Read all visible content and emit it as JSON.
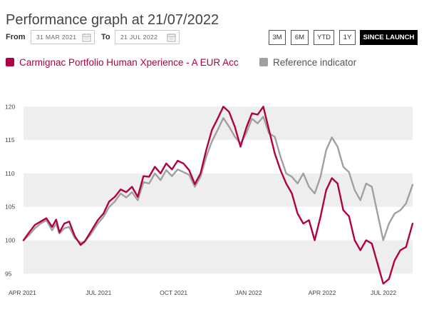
{
  "title": "Performance graph at 21/07/2022",
  "range": {
    "from_label": "From",
    "from_value": "31 MAR 2021",
    "to_label": "To",
    "to_value": "21 JUL 2022",
    "icon": "calendar-icon"
  },
  "periods": [
    {
      "label": "3M",
      "active": false
    },
    {
      "label": "6M",
      "active": false
    },
    {
      "label": "YTD",
      "active": false
    },
    {
      "label": "1Y",
      "active": false
    },
    {
      "label": "SINCE LAUNCH",
      "active": true
    }
  ],
  "colors": {
    "fund": "#b00046",
    "reference": "#a0a0a0",
    "band": "#eeeeee"
  },
  "chart_data": {
    "type": "line",
    "title": "Performance graph at 21/07/2022",
    "x_ticks": [
      "APR 2021",
      "JUL 2021",
      "OCT 2021",
      "JAN 2022",
      "APR 2022",
      "JUL 2022"
    ],
    "y_ticks": [
      95,
      100,
      105,
      110,
      115,
      120
    ],
    "ylim": [
      93,
      121
    ],
    "xlim": [
      "2021-03-31",
      "2022-07-21"
    ],
    "grid": "alternating horizontal bands",
    "legend_position": "top-left",
    "series": [
      {
        "name": "Carmignac Portfolio Human Xperience - A EUR Acc",
        "color": "#b00046",
        "points": [
          [
            "2021-03-31",
            100.0
          ],
          [
            "2021-04-07",
            101.2
          ],
          [
            "2021-04-14",
            102.3
          ],
          [
            "2021-04-21",
            102.8
          ],
          [
            "2021-04-28",
            103.3
          ],
          [
            "2021-05-05",
            102.0
          ],
          [
            "2021-05-10",
            103.1
          ],
          [
            "2021-05-14",
            101.2
          ],
          [
            "2021-05-20",
            102.5
          ],
          [
            "2021-05-26",
            102.8
          ],
          [
            "2021-06-02",
            100.6
          ],
          [
            "2021-06-09",
            99.3
          ],
          [
            "2021-06-14",
            99.8
          ],
          [
            "2021-06-21",
            101.2
          ],
          [
            "2021-06-30",
            103.0
          ],
          [
            "2021-07-07",
            104.0
          ],
          [
            "2021-07-14",
            105.8
          ],
          [
            "2021-07-21",
            106.5
          ],
          [
            "2021-07-28",
            107.6
          ],
          [
            "2021-08-04",
            107.2
          ],
          [
            "2021-08-11",
            108.0
          ],
          [
            "2021-08-18",
            106.5
          ],
          [
            "2021-08-25",
            109.6
          ],
          [
            "2021-09-01",
            109.5
          ],
          [
            "2021-09-08",
            111.0
          ],
          [
            "2021-09-15",
            110.0
          ],
          [
            "2021-09-22",
            111.5
          ],
          [
            "2021-09-29",
            110.6
          ],
          [
            "2021-10-06",
            111.9
          ],
          [
            "2021-10-13",
            111.5
          ],
          [
            "2021-10-20",
            110.5
          ],
          [
            "2021-10-27",
            108.4
          ],
          [
            "2021-11-03",
            110.0
          ],
          [
            "2021-11-10",
            113.5
          ],
          [
            "2021-11-17",
            116.5
          ],
          [
            "2021-11-24",
            118.2
          ],
          [
            "2021-12-01",
            120.0
          ],
          [
            "2021-12-08",
            119.2
          ],
          [
            "2021-12-15",
            117.0
          ],
          [
            "2021-12-22",
            114.0
          ],
          [
            "2021-12-29",
            116.8
          ],
          [
            "2022-01-05",
            119.0
          ],
          [
            "2022-01-12",
            118.8
          ],
          [
            "2022-01-19",
            120.0
          ],
          [
            "2022-01-26",
            116.5
          ],
          [
            "2022-02-02",
            113.0
          ],
          [
            "2022-02-09",
            110.5
          ],
          [
            "2022-02-16",
            108.5
          ],
          [
            "2022-02-23",
            107.0
          ],
          [
            "2022-03-02",
            104.0
          ],
          [
            "2022-03-09",
            102.5
          ],
          [
            "2022-03-16",
            103.0
          ],
          [
            "2022-03-23",
            100.0
          ],
          [
            "2022-03-30",
            103.5
          ],
          [
            "2022-04-06",
            107.5
          ],
          [
            "2022-04-13",
            109.3
          ],
          [
            "2022-04-20",
            108.5
          ],
          [
            "2022-04-27",
            104.5
          ],
          [
            "2022-05-04",
            103.6
          ],
          [
            "2022-05-11",
            100.0
          ],
          [
            "2022-05-18",
            98.5
          ],
          [
            "2022-05-25",
            100.0
          ],
          [
            "2022-06-01",
            99.5
          ],
          [
            "2022-06-08",
            96.5
          ],
          [
            "2022-06-15",
            93.5
          ],
          [
            "2022-06-22",
            94.2
          ],
          [
            "2022-06-29",
            97.0
          ],
          [
            "2022-07-06",
            98.5
          ],
          [
            "2022-07-13",
            99.0
          ],
          [
            "2022-07-21",
            102.5
          ]
        ]
      },
      {
        "name": "Reference indicator",
        "color": "#a0a0a0",
        "points": [
          [
            "2021-03-31",
            100.0
          ],
          [
            "2021-04-07",
            100.8
          ],
          [
            "2021-04-14",
            101.8
          ],
          [
            "2021-04-21",
            102.5
          ],
          [
            "2021-04-28",
            103.0
          ],
          [
            "2021-05-05",
            101.5
          ],
          [
            "2021-05-10",
            102.5
          ],
          [
            "2021-05-14",
            101.0
          ],
          [
            "2021-05-20",
            101.8
          ],
          [
            "2021-05-26",
            102.0
          ],
          [
            "2021-06-02",
            100.3
          ],
          [
            "2021-06-09",
            99.6
          ],
          [
            "2021-06-14",
            99.8
          ],
          [
            "2021-06-21",
            100.8
          ],
          [
            "2021-06-30",
            102.5
          ],
          [
            "2021-07-07",
            103.5
          ],
          [
            "2021-07-14",
            105.0
          ],
          [
            "2021-07-21",
            105.8
          ],
          [
            "2021-07-28",
            107.0
          ],
          [
            "2021-08-04",
            106.4
          ],
          [
            "2021-08-11",
            107.2
          ],
          [
            "2021-08-18",
            106.0
          ],
          [
            "2021-08-25",
            108.7
          ],
          [
            "2021-09-01",
            108.5
          ],
          [
            "2021-09-08",
            110.0
          ],
          [
            "2021-09-15",
            109.0
          ],
          [
            "2021-09-22",
            110.5
          ],
          [
            "2021-09-29",
            109.6
          ],
          [
            "2021-10-06",
            110.6
          ],
          [
            "2021-10-13",
            110.2
          ],
          [
            "2021-10-20",
            109.8
          ],
          [
            "2021-10-27",
            108.0
          ],
          [
            "2021-11-03",
            109.5
          ],
          [
            "2021-11-10",
            112.5
          ],
          [
            "2021-11-17",
            114.8
          ],
          [
            "2021-11-24",
            116.5
          ],
          [
            "2021-12-01",
            118.3
          ],
          [
            "2021-12-08",
            117.0
          ],
          [
            "2021-12-15",
            115.5
          ],
          [
            "2021-12-22",
            114.5
          ],
          [
            "2021-12-29",
            116.0
          ],
          [
            "2022-01-05",
            118.2
          ],
          [
            "2022-01-12",
            117.5
          ],
          [
            "2022-01-19",
            118.5
          ],
          [
            "2022-01-26",
            116.0
          ],
          [
            "2022-02-02",
            115.5
          ],
          [
            "2022-02-09",
            112.5
          ],
          [
            "2022-02-16",
            110.0
          ],
          [
            "2022-02-23",
            109.5
          ],
          [
            "2022-03-02",
            108.5
          ],
          [
            "2022-03-09",
            110.0
          ],
          [
            "2022-03-16",
            108.0
          ],
          [
            "2022-03-23",
            107.0
          ],
          [
            "2022-03-30",
            109.5
          ],
          [
            "2022-04-06",
            113.5
          ],
          [
            "2022-04-13",
            115.4
          ],
          [
            "2022-04-20",
            114.0
          ],
          [
            "2022-04-27",
            111.0
          ],
          [
            "2022-05-04",
            110.2
          ],
          [
            "2022-05-11",
            107.5
          ],
          [
            "2022-05-18",
            106.0
          ],
          [
            "2022-05-25",
            108.5
          ],
          [
            "2022-06-01",
            108.0
          ],
          [
            "2022-06-08",
            104.0
          ],
          [
            "2022-06-15",
            100.0
          ],
          [
            "2022-06-22",
            102.5
          ],
          [
            "2022-06-29",
            104.0
          ],
          [
            "2022-07-06",
            104.5
          ],
          [
            "2022-07-13",
            105.5
          ],
          [
            "2022-07-21",
            108.3
          ]
        ]
      }
    ]
  }
}
